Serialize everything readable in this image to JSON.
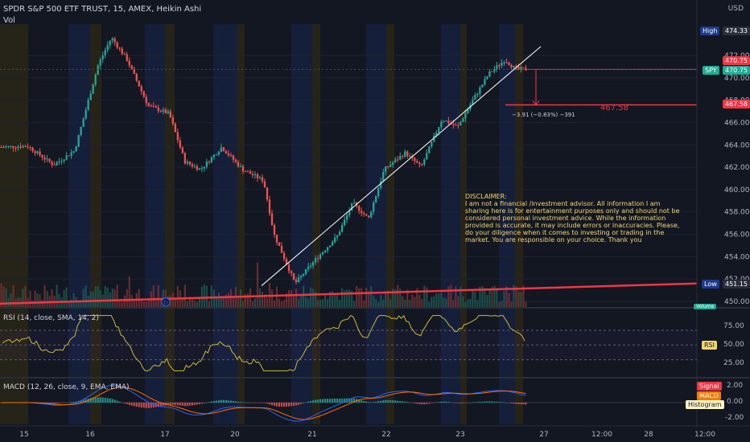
{
  "header": {
    "title": "SPDR S&P 500 ETF TRUST, 15, AMEX, Heikin Ashi",
    "volume_label": "Vol",
    "currency": "USD"
  },
  "price_tags": {
    "high_label": "High",
    "high_value": "474.33",
    "upper_value": "470.75",
    "symbol": "SPY",
    "symbol_value": "470.75",
    "target_value": "467.58",
    "low_label": "Low",
    "low_value": "451.15",
    "volume_tag": "Volume"
  },
  "annotations": {
    "target_text": "467.58",
    "measure_text": "−3.91 (−0.83%) −391",
    "disclaimer": "DISCLAIMER:\nI am not a financial /investment advisor. All information I am sharing here is for entertainment purposes only and should not be considered personal investment advice. While the information provided is accurate, it may include errors or inaccuracies. Please, do your diligence when it comes to investing or trading in the market. You are responsible on your choice. Thank you",
    "dividend_marker": "D"
  },
  "rsi": {
    "title": "RSI (14, close, SMA, 14, 2)",
    "tag": "RSI",
    "ticks": [
      "75.00",
      "50.00",
      "25.00"
    ]
  },
  "macd": {
    "title": "MACD (12, 26, close, 9, EMA, EMA)",
    "legend": [
      "Signal",
      "MACD",
      "Histogram"
    ],
    "ticks": [
      "2.00",
      "0.00",
      "-2.00"
    ]
  },
  "colors": {
    "up": "#26a69a",
    "down": "#ef5350",
    "rsi_line": "#c9b740",
    "macd_line": "#2962ff",
    "signal_line": "#ff6d00",
    "background": "#131722"
  },
  "chart_data": {
    "type": "candlestick",
    "price_axis_ticks": [
      472.0,
      470.0,
      468.0,
      466.0,
      464.0,
      462.0,
      460.0,
      458.0,
      456.0,
      454.0,
      452.0,
      450.0
    ],
    "x_axis_labels": [
      "15",
      "16",
      "17",
      "20",
      "21",
      "22",
      "23",
      "27",
      "12:00",
      "28",
      "12:00"
    ],
    "ylim": [
      449.5,
      474.8
    ],
    "price_path": [
      [
        0,
        463.8
      ],
      [
        0.05,
        463.9
      ],
      [
        0.1,
        462.2
      ],
      [
        0.14,
        463.5
      ],
      [
        0.185,
        471.2
      ],
      [
        0.21,
        473.6
      ],
      [
        0.24,
        471.6
      ],
      [
        0.28,
        467.5
      ],
      [
        0.32,
        466.8
      ],
      [
        0.35,
        462.5
      ],
      [
        0.38,
        461.8
      ],
      [
        0.42,
        463.8
      ],
      [
        0.46,
        461.8
      ],
      [
        0.5,
        460.8
      ],
      [
        0.52,
        456.0
      ],
      [
        0.56,
        451.6
      ],
      [
        0.6,
        453.8
      ],
      [
        0.64,
        455.8
      ],
      [
        0.67,
        458.8
      ],
      [
        0.7,
        457.4
      ],
      [
        0.73,
        461.8
      ],
      [
        0.77,
        463.3
      ],
      [
        0.8,
        462.0
      ],
      [
        0.84,
        466.3
      ],
      [
        0.87,
        465.6
      ],
      [
        0.9,
        468.1
      ],
      [
        0.93,
        470.4
      ],
      [
        0.96,
        471.6
      ],
      [
        0.98,
        470.8
      ],
      [
        1.0,
        470.75
      ]
    ],
    "trendline_up": [
      [
        451.4,
        0.0
      ],
      [
        472.8,
        1.0
      ]
    ],
    "support_line": [
      449.8,
      451.6
    ],
    "rsi_levels": [
      70,
      50,
      30
    ],
    "rsi_range": [
      10,
      95
    ],
    "macd_range": [
      -2.6,
      2.6
    ]
  }
}
